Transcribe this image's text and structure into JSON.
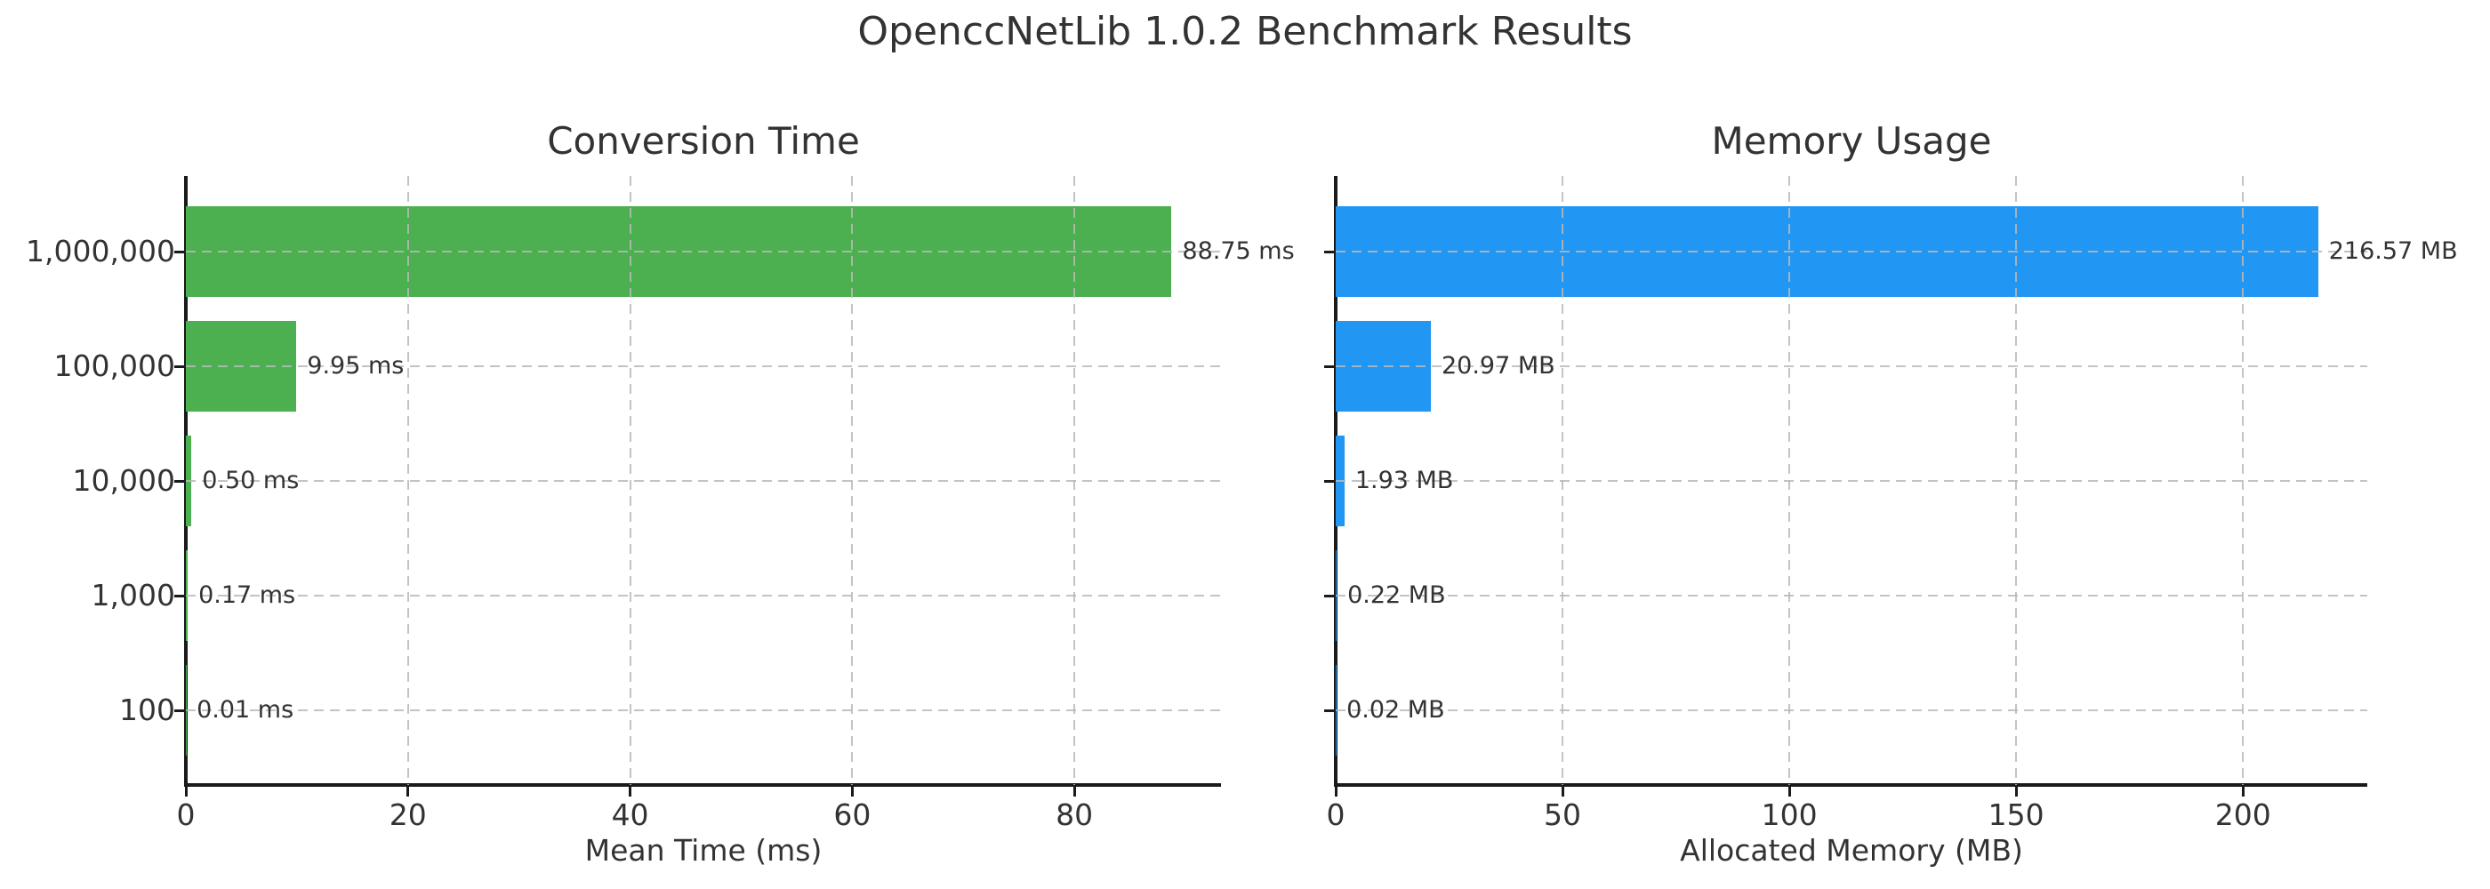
{
  "page": {
    "title": "OpenccNetLib 1.0.2 Benchmark Results"
  },
  "colors": {
    "time_bar": "#4caf50",
    "memory_bar": "#2196f3",
    "text": "#333333",
    "grid": "#bdbdbd",
    "spine": "#1a1a1a",
    "background": "#ffffff"
  },
  "chart_data": [
    {
      "type": "bar",
      "orientation": "horizontal",
      "title": "Conversion Time",
      "categories": [
        "1,000,000",
        "100,000",
        "10,000",
        "1,000",
        "100"
      ],
      "values": [
        88.75,
        9.95,
        0.5,
        0.17,
        0.01
      ],
      "labels": [
        "88.75 ms",
        "9.95 ms",
        "0.50 ms",
        "0.17 ms",
        "0.01 ms"
      ],
      "xlabel": "Mean Time (ms)",
      "ylabel": "",
      "xticks": [
        0,
        20,
        40,
        60,
        80
      ],
      "xlim": [
        0,
        93.2
      ],
      "bar_color": "#4caf50",
      "grid": true,
      "legend": "none"
    },
    {
      "type": "bar",
      "orientation": "horizontal",
      "title": "Memory Usage",
      "categories": [
        "1,000,000",
        "100,000",
        "10,000",
        "1,000",
        "100"
      ],
      "values": [
        216.57,
        20.97,
        1.93,
        0.22,
        0.02
      ],
      "labels": [
        "216.57 MB",
        "20.97 MB",
        "1.93 MB",
        "0.22 MB",
        "0.02 MB"
      ],
      "xlabel": "Allocated Memory (MB)",
      "ylabel": "",
      "xticks": [
        0,
        50,
        100,
        150,
        200
      ],
      "xlim": [
        0,
        227.4
      ],
      "bar_color": "#2196f3",
      "grid": true,
      "legend": "none"
    }
  ]
}
